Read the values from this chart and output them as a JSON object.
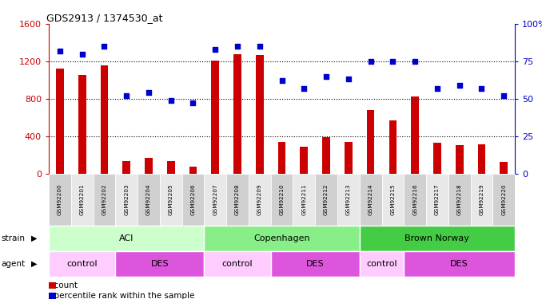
{
  "title": "GDS2913 / 1374530_at",
  "samples": [
    "GSM92200",
    "GSM92201",
    "GSM92202",
    "GSM92203",
    "GSM92204",
    "GSM92205",
    "GSM92206",
    "GSM92207",
    "GSM92208",
    "GSM92209",
    "GSM92210",
    "GSM92211",
    "GSM92212",
    "GSM92213",
    "GSM92214",
    "GSM92215",
    "GSM92216",
    "GSM92217",
    "GSM92218",
    "GSM92219",
    "GSM92220"
  ],
  "counts": [
    1120,
    1050,
    1160,
    130,
    170,
    130,
    70,
    1210,
    1280,
    1270,
    340,
    290,
    390,
    340,
    680,
    570,
    820,
    330,
    300,
    310,
    120
  ],
  "percentiles": [
    82,
    80,
    85,
    52,
    54,
    49,
    47,
    83,
    85,
    85,
    62,
    57,
    65,
    63,
    75,
    75,
    75,
    57,
    59,
    57,
    52
  ],
  "ylim_left": [
    0,
    1600
  ],
  "ylim_right": [
    0,
    100
  ],
  "yticks_left": [
    0,
    400,
    800,
    1200,
    1600
  ],
  "yticks_right": [
    0,
    25,
    50,
    75,
    100
  ],
  "bar_color": "#cc0000",
  "dot_color": "#0000cc",
  "strain_groups": [
    {
      "label": "ACI",
      "start": 0,
      "end": 6,
      "color": "#ccffcc"
    },
    {
      "label": "Copenhagen",
      "start": 7,
      "end": 13,
      "color": "#88ee88"
    },
    {
      "label": "Brown Norway",
      "start": 14,
      "end": 20,
      "color": "#44cc44"
    }
  ],
  "agent_groups": [
    {
      "label": "control",
      "start": 0,
      "end": 2,
      "color": "#ffccff"
    },
    {
      "label": "DES",
      "start": 3,
      "end": 6,
      "color": "#dd55dd"
    },
    {
      "label": "control",
      "start": 7,
      "end": 9,
      "color": "#ffccff"
    },
    {
      "label": "DES",
      "start": 10,
      "end": 13,
      "color": "#dd55dd"
    },
    {
      "label": "control",
      "start": 14,
      "end": 15,
      "color": "#ffccff"
    },
    {
      "label": "DES",
      "start": 16,
      "end": 20,
      "color": "#dd55dd"
    }
  ],
  "legend_count_color": "#cc0000",
  "legend_pct_color": "#0000cc",
  "bg_color": "#ffffff",
  "tick_color_left": "#cc0000",
  "tick_color_right": "#0000cc",
  "xticklabel_bg_even": "#d0d0d0",
  "xticklabel_bg_odd": "#e8e8e8"
}
